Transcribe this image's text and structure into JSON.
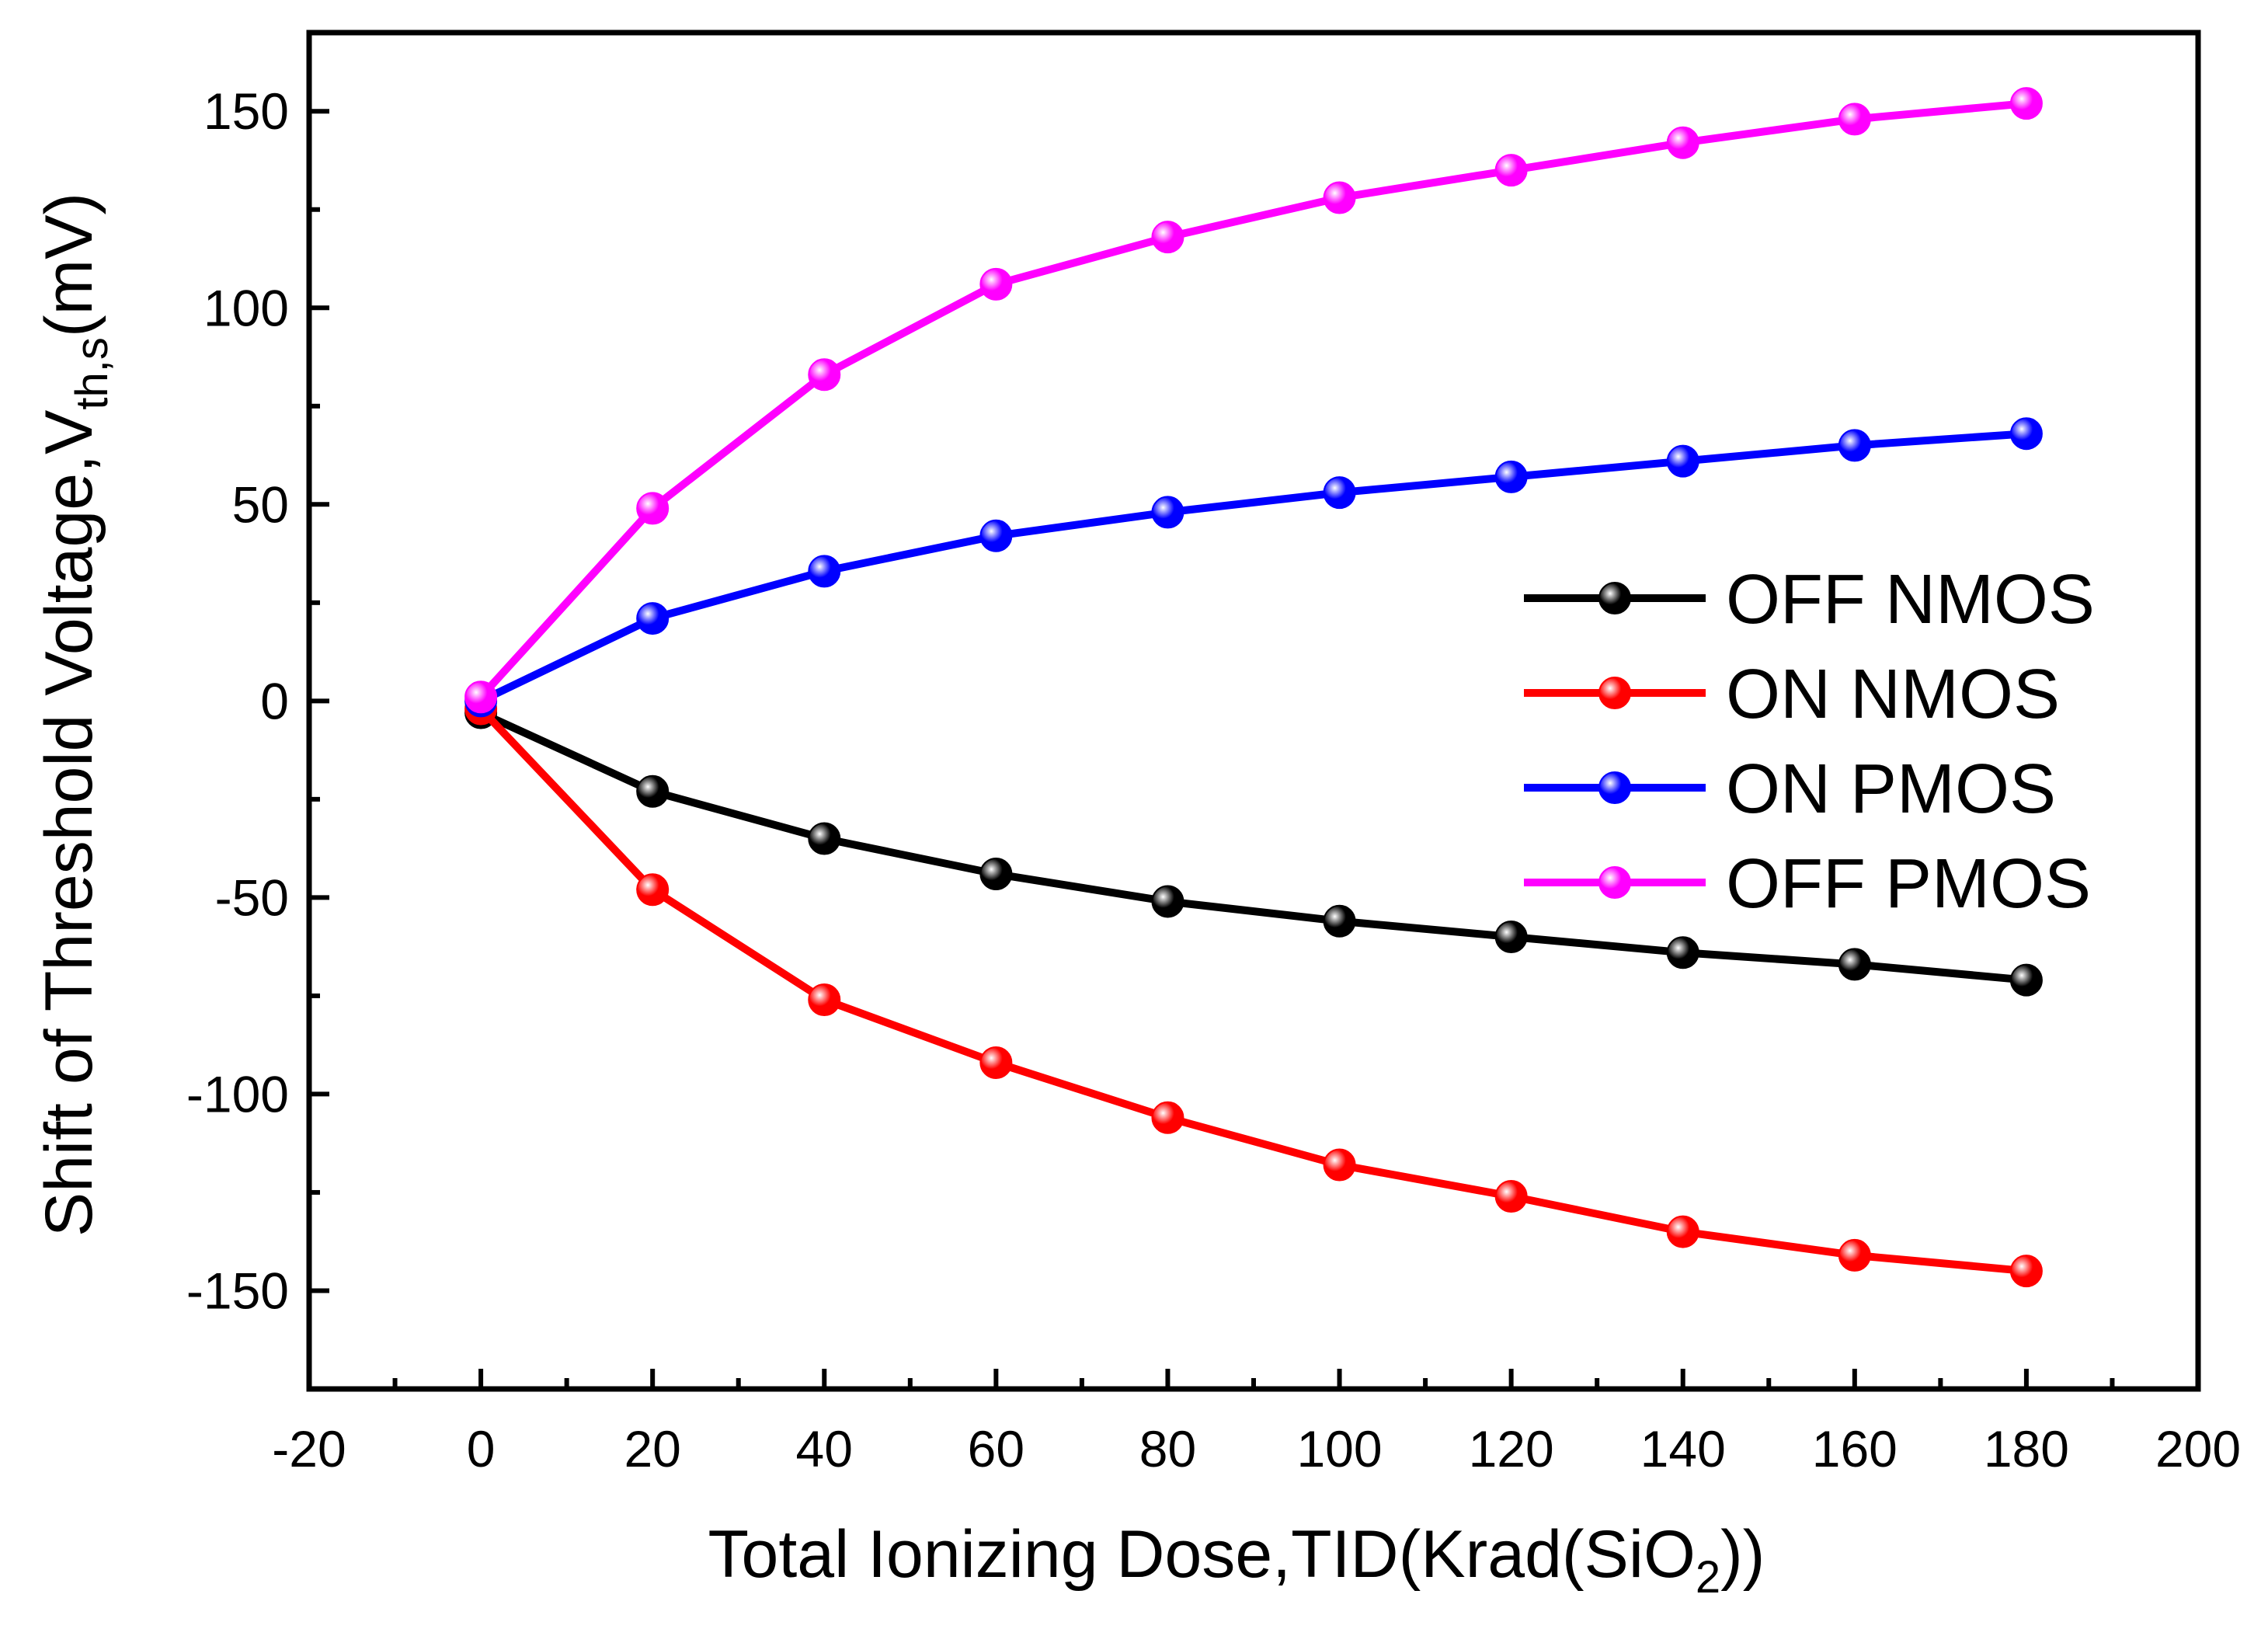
{
  "chart_data": {
    "type": "line",
    "title": "",
    "xlabel": "Total Ionizing Dose,TID(Krad(SiO2))",
    "xlabel_parts": {
      "main": "Total Ionizing Dose,TID(Krad(SiO",
      "sub": "2",
      "tail": "))"
    },
    "ylabel": "Shift of Threshold Voltage,Vth,s(mV)",
    "ylabel_parts": {
      "main": "Shift of Threshold Voltage,V",
      "sub": "th,s",
      "tail": "(mV)"
    },
    "xlim": [
      -20,
      200
    ],
    "ylim": [
      -175,
      170
    ],
    "x_ticks": [
      -20,
      0,
      20,
      40,
      60,
      80,
      100,
      120,
      140,
      160,
      180,
      200
    ],
    "x_tick_labels": [
      "-20",
      "0",
      "20",
      "40",
      "60",
      "80",
      "100",
      "120",
      "140",
      "160",
      "180",
      "200"
    ],
    "y_ticks": [
      -150,
      -100,
      -50,
      0,
      50,
      100,
      150
    ],
    "y_tick_labels": [
      "-150",
      "-100",
      "-50",
      "0",
      "50",
      "100",
      "150"
    ],
    "grid": false,
    "legend_position": "right-middle",
    "x": [
      0,
      20,
      40,
      60,
      80,
      100,
      120,
      140,
      160,
      180
    ],
    "series": [
      {
        "name": "OFF NMOS",
        "color": "#000000",
        "values": [
          -3,
          -23,
          -35,
          -44,
          -51,
          -56,
          -60,
          -64,
          -67,
          -71
        ]
      },
      {
        "name": "ON NMOS",
        "color": "#ff0000",
        "values": [
          -2,
          -48,
          -76,
          -92,
          -106,
          -118,
          -126,
          -135,
          -141,
          -145
        ]
      },
      {
        "name": "ON PMOS",
        "color": "#0000ff",
        "values": [
          0,
          21,
          33,
          42,
          48,
          53,
          57,
          61,
          65,
          68
        ]
      },
      {
        "name": "OFF PMOS",
        "color": "#ff00ff",
        "values": [
          1,
          49,
          83,
          106,
          118,
          128,
          135,
          142,
          148,
          152
        ]
      }
    ]
  }
}
